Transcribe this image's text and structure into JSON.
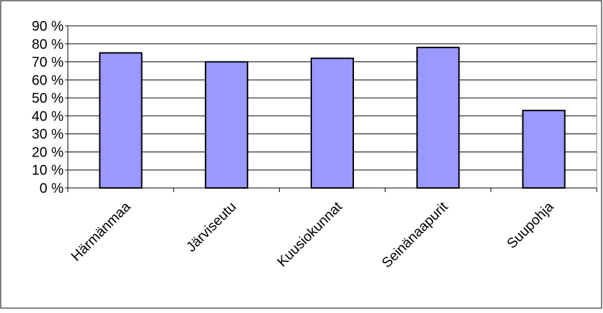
{
  "chart_data": {
    "type": "bar",
    "categories": [
      "Härmänmaa",
      "Järviseutu",
      "Kuusiokunnat",
      "Seinänaapurit",
      "Suupohja"
    ],
    "values": [
      75,
      70,
      72,
      78,
      43
    ],
    "color": "#9999ff",
    "ylim": [
      0,
      90
    ],
    "yticks": [
      {
        "value": 0,
        "label": "0 %"
      },
      {
        "value": 10,
        "label": "10 %"
      },
      {
        "value": 20,
        "label": "20 %"
      },
      {
        "value": 30,
        "label": "30 %"
      },
      {
        "value": 40,
        "label": "40 %"
      },
      {
        "value": 50,
        "label": "50 %"
      },
      {
        "value": 60,
        "label": "60 %"
      },
      {
        "value": 70,
        "label": "70 %"
      },
      {
        "value": 80,
        "label": "80 %"
      },
      {
        "value": 90,
        "label": "90 %"
      }
    ],
    "grid": true
  }
}
